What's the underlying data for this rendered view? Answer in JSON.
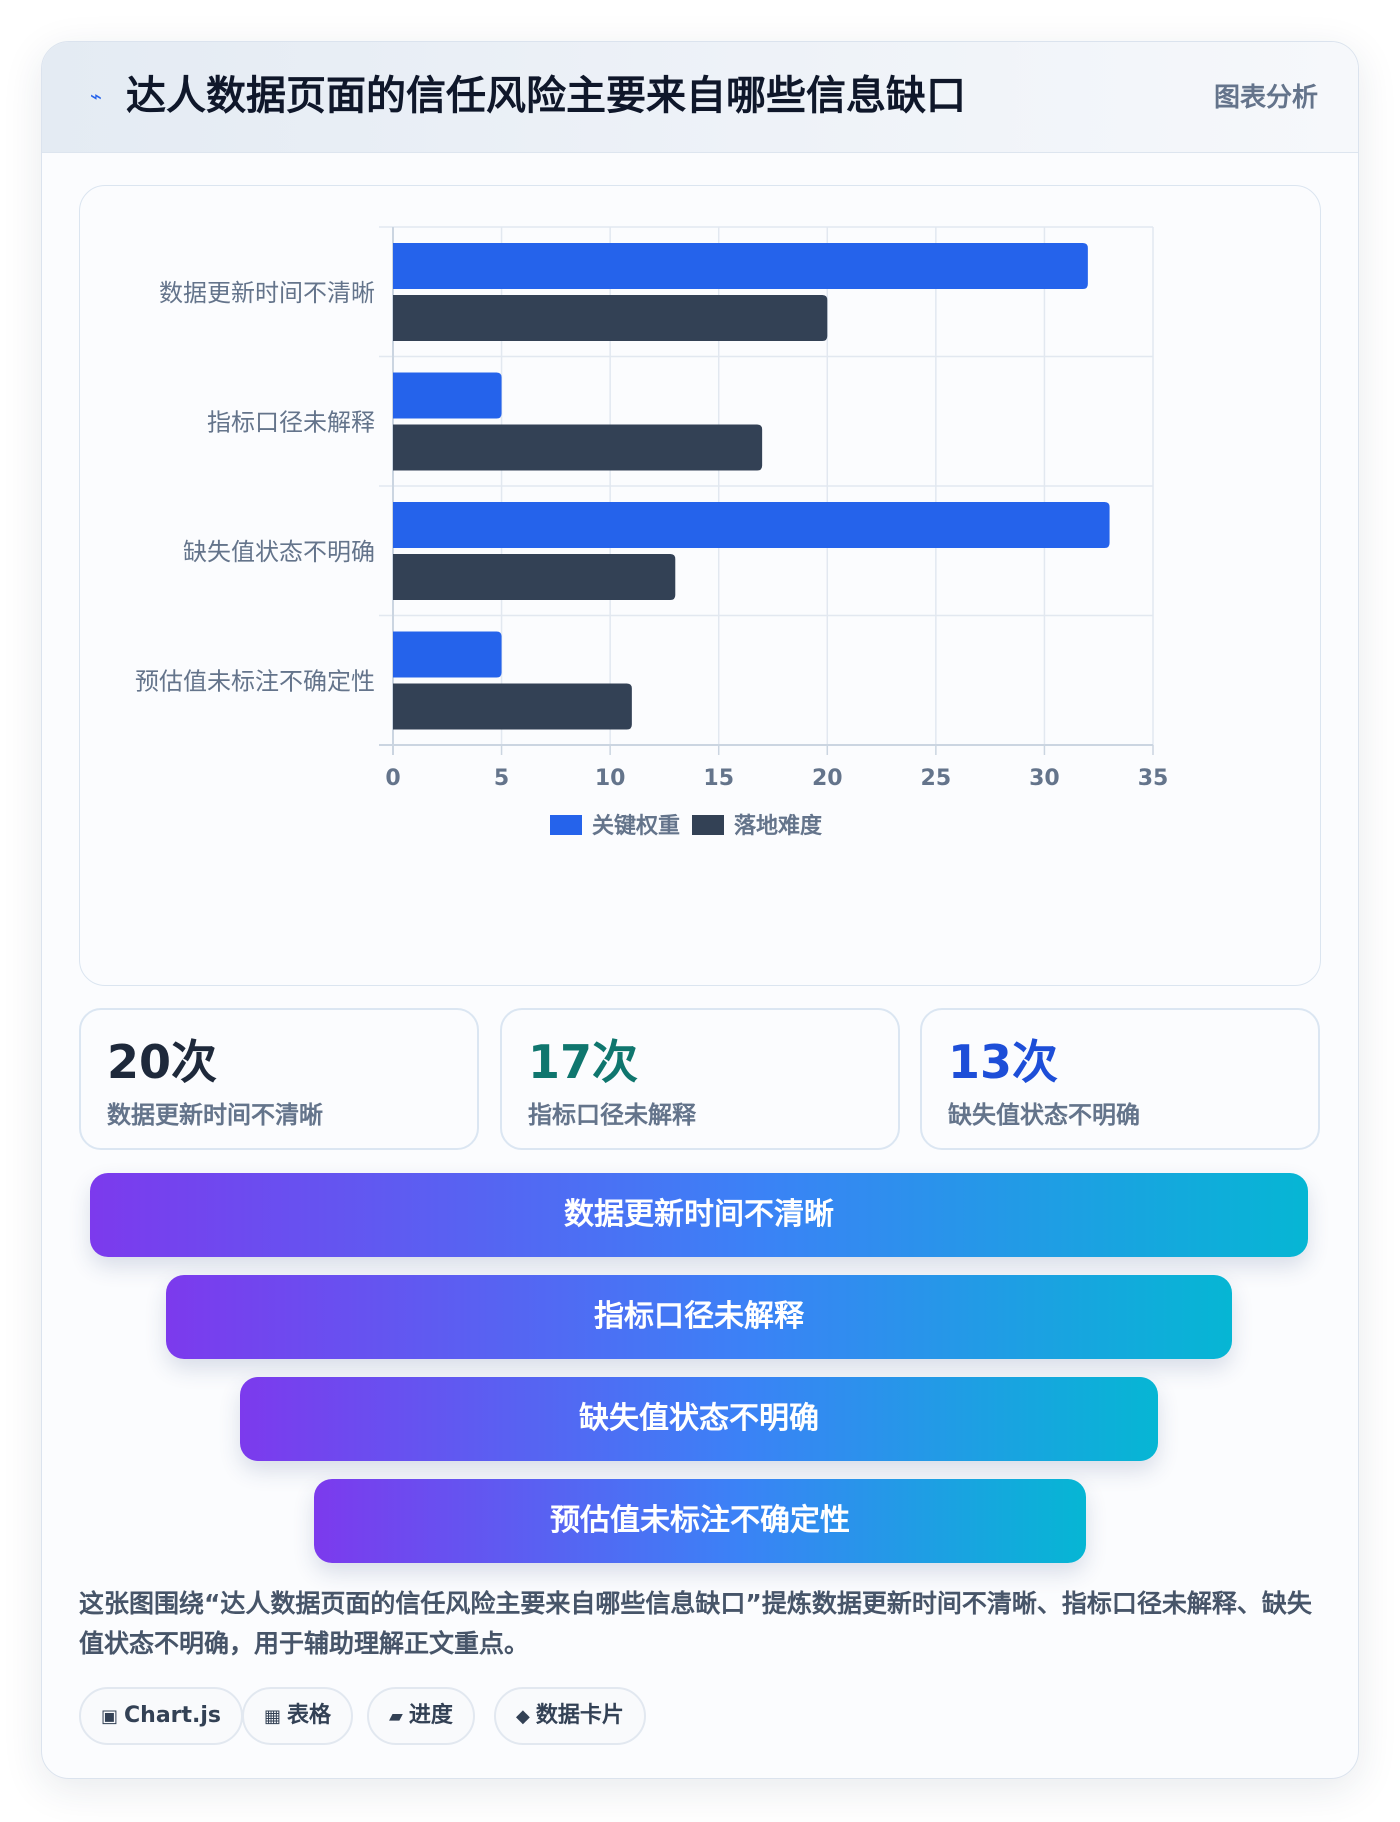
{
  "header": {
    "title": "达人数据页面的信任风险主要来自哪些信息缺口",
    "tag": "图表分析",
    "icon": "lightning-icon"
  },
  "chart_data": {
    "type": "bar",
    "orientation": "horizontal",
    "categories": [
      "数据更新时间不清晰",
      "指标口径未解释",
      "缺失值状态不明确",
      "预估值未标注不确定性"
    ],
    "series": [
      {
        "name": "关键权重",
        "values": [
          32,
          5,
          33,
          5
        ],
        "color": "#2563eb"
      },
      {
        "name": "落地难度",
        "values": [
          20,
          17,
          13,
          11
        ],
        "color": "#334155"
      }
    ],
    "xlim": [
      0,
      35
    ],
    "xticks": [
      0,
      5,
      10,
      15,
      20,
      25,
      30,
      35
    ],
    "grid": true,
    "legend": "bottom"
  },
  "stats": [
    {
      "value": "20次",
      "label": "数据更新时间不清晰",
      "color": "#1e293b"
    },
    {
      "value": "17次",
      "label": "指标口径未解释",
      "color": "#0f766e"
    },
    {
      "value": "13次",
      "label": "缺失值状态不明确",
      "color": "#1d4ed8"
    }
  ],
  "funnel": [
    "数据更新时间不清晰",
    "指标口径未解释",
    "缺失值状态不明确",
    "预估值未标注不确定性"
  ],
  "summary": "这张图围绕“达人数据页面的信任风险主要来自哪些信息缺口”提炼数据更新时间不清晰、指标口径未解释、缺失值状态不明确，用于辅助理解正文重点。",
  "chips": [
    {
      "icon": "▣",
      "label": "Chart.js"
    },
    {
      "icon": "▦",
      "label": "表格"
    },
    {
      "icon": "▰",
      "label": "进度"
    },
    {
      "icon": "◆",
      "label": "数据卡片"
    }
  ]
}
